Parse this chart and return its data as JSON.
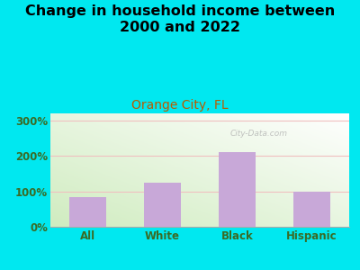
{
  "title": "Change in household income between\n2000 and 2022",
  "subtitle": "Orange City, FL",
  "categories": [
    "All",
    "White",
    "Black",
    "Hispanic"
  ],
  "values": [
    85,
    125,
    210,
    100
  ],
  "bar_color": "#c8a8d8",
  "title_fontsize": 11.5,
  "subtitle_fontsize": 10,
  "ylabel_ticks": [
    "0%",
    "100%",
    "200%",
    "300%"
  ],
  "ytick_vals": [
    0,
    100,
    200,
    300
  ],
  "ylim": [
    0,
    320
  ],
  "outer_bg": "#00e8f0",
  "watermark": "City-Data.com",
  "gridline_color": "#f0c0c0",
  "tick_label_color": "#3a6b25",
  "subtitle_color": "#b85c00"
}
